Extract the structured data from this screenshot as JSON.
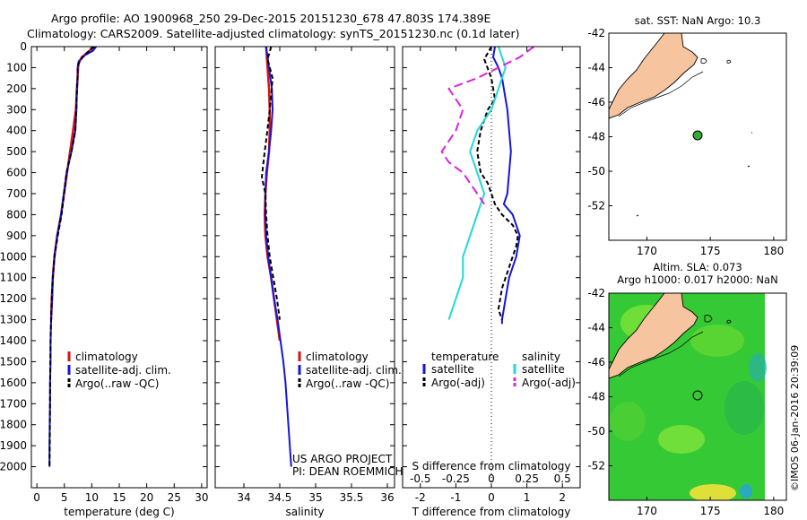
{
  "header": {
    "line1": "Argo profile: AO 1900968_250 29-Dec-2015 20151230_678 47.803S 174.389E",
    "line2": "Climatology: CARS2009. Satellite-adjusted climatology: synTS_20151230.nc (0.1d later)"
  },
  "credit": "©IMOS 06-Jan-2016 20:39:09",
  "colors": {
    "climatology": "#dd1111",
    "satellite": "#1515dd",
    "argo": "#000000",
    "salinity_sat": "#22d8d8",
    "salinity_argo": "#dd22dd",
    "land": "#f6c49e",
    "float_marker": "#33aa33"
  },
  "chart_data": [
    {
      "id": "temperature",
      "type": "line",
      "xlabel": "temperature (deg C)",
      "ylabel": "",
      "xlim": [
        -1,
        31
      ],
      "ylim": [
        2100,
        0
      ],
      "y_reversed": true,
      "xticks": [
        "0",
        "5",
        "10",
        "15",
        "20",
        "25",
        "30"
      ],
      "xtick_values": [
        0,
        5,
        10,
        15,
        20,
        25,
        30
      ],
      "yticks": [
        "0",
        "100",
        "200",
        "300",
        "400",
        "500",
        "600",
        "700",
        "800",
        "900",
        "1000",
        "1100",
        "1200",
        "1300",
        "1400",
        "1500",
        "1600",
        "1700",
        "1800",
        "1900",
        "2000"
      ],
      "legend": [
        "climatology",
        "satellite-adj. clim.",
        "Argo(..raw -QC)"
      ],
      "legend_position": "lower-middle",
      "series": [
        {
          "name": "climatology",
          "color": "#dd1111",
          "width": 2.5,
          "x": [
            10.1,
            9.6,
            8.2,
            7.6,
            7.5,
            7.4,
            7.3,
            7.1,
            6.6,
            5.5,
            4.4,
            3.7,
            3.2,
            2.9,
            2.7,
            2.6
          ],
          "y": [
            0,
            20,
            50,
            80,
            100,
            150,
            200,
            300,
            400,
            600,
            800,
            900,
            1000,
            1100,
            1200,
            1300
          ]
        },
        {
          "name": "satellite-adj. clim.",
          "color": "#1515dd",
          "width": 2,
          "x": [
            10.8,
            10.2,
            8.8,
            7.6,
            7.4,
            7.4,
            7.3,
            7.2,
            7.0,
            6.3,
            5.4,
            4.4,
            3.7,
            3.2,
            2.9,
            2.8,
            2.6,
            2.5,
            2.5,
            2.4,
            2.4,
            2.35,
            2.3,
            2.3
          ],
          "y": [
            0,
            20,
            40,
            70,
            100,
            150,
            200,
            300,
            400,
            500,
            600,
            800,
            900,
            1000,
            1100,
            1200,
            1300,
            1400,
            1500,
            1600,
            1700,
            1800,
            1900,
            2000
          ]
        },
        {
          "name": "Argo(..raw -QC)",
          "color": "#000000",
          "width": 2,
          "dash": "5,3",
          "x": [
            10.5,
            9.5,
            8.3,
            7.6,
            7.4,
            7.4,
            7.3,
            7.2,
            7.0,
            6.3,
            5.4,
            4.5,
            3.8,
            3.2,
            2.9,
            2.7,
            2.6,
            2.5,
            2.45,
            2.4,
            2.35,
            2.3
          ],
          "y": [
            0,
            20,
            50,
            80,
            100,
            150,
            200,
            300,
            400,
            500,
            600,
            800,
            900,
            1000,
            1100,
            1200,
            1300,
            1400,
            1500,
            1700,
            1900,
            2000
          ]
        }
      ]
    },
    {
      "id": "salinity",
      "type": "line",
      "xlabel": "salinity",
      "ylabel": "",
      "xlim": [
        33.6,
        36.1
      ],
      "ylim": [
        2100,
        0
      ],
      "y_reversed": true,
      "xticks": [
        "34",
        "34.5",
        "35",
        "35.5",
        "36"
      ],
      "xtick_values": [
        34,
        34.5,
        35,
        35.5,
        36
      ],
      "legend": [
        "climatology",
        "satellite-adj. clim.",
        "Argo(..raw -QC)"
      ],
      "legend_position": "lower-middle",
      "annotations": [
        "US ARGO PROJECT",
        "PI: DEAN ROEMMICH"
      ],
      "series": [
        {
          "name": "climatology",
          "color": "#dd1111",
          "width": 2.5,
          "x": [
            34.31,
            34.33,
            34.35,
            34.36,
            34.36,
            34.35,
            34.32,
            34.3,
            34.29,
            34.3,
            34.33,
            34.38,
            34.42,
            34.46,
            34.5
          ],
          "y": [
            0,
            100,
            200,
            300,
            400,
            500,
            600,
            700,
            800,
            900,
            1000,
            1100,
            1200,
            1300,
            1400
          ]
        },
        {
          "name": "satellite-adj. clim.",
          "color": "#1515dd",
          "width": 2,
          "x": [
            34.31,
            34.35,
            34.39,
            34.4,
            34.38,
            34.35,
            34.31,
            34.3,
            34.3,
            34.31,
            34.34,
            34.38,
            34.42,
            34.47,
            34.51,
            34.55,
            34.58,
            34.6,
            34.62,
            34.64,
            34.66
          ],
          "y": [
            0,
            100,
            200,
            300,
            400,
            500,
            600,
            700,
            800,
            900,
            1000,
            1100,
            1200,
            1300,
            1400,
            1500,
            1600,
            1700,
            1800,
            1900,
            2000
          ]
        },
        {
          "name": "Argo(..raw -QC)",
          "color": "#000000",
          "width": 2,
          "dash": "5,3",
          "x": [
            34.38,
            34.33,
            34.4,
            34.36,
            34.32,
            34.29,
            34.25,
            34.3,
            34.31,
            34.33,
            34.36,
            34.41,
            34.46,
            34.5
          ],
          "y": [
            0,
            60,
            150,
            300,
            420,
            500,
            620,
            700,
            800,
            900,
            1000,
            1100,
            1200,
            1300
          ]
        }
      ]
    },
    {
      "id": "difference",
      "type": "line",
      "xlabel": "T difference from climatology",
      "xlabel_top": "S difference from climatology",
      "xlim": [
        -2.5,
        2.5
      ],
      "ylim": [
        2100,
        0
      ],
      "y_reversed": true,
      "xticks": [
        "-2",
        "-1",
        "0",
        "1",
        "2"
      ],
      "xtick_values": [
        -2,
        -1,
        0,
        1,
        2
      ],
      "s_ticks": [
        "-0.5",
        "-0.25",
        "0",
        "0.25",
        "0.5"
      ],
      "s_tick_values": [
        -0.5,
        -0.25,
        0,
        0.25,
        0.5
      ],
      "legend_headers": [
        "temperature",
        "salinity"
      ],
      "legend": [
        "satellite",
        "Argo(-adj)",
        "satellite",
        "Argo(-adj)"
      ],
      "legend_position": "lower-middle",
      "series": [
        {
          "name": "satellite",
          "group": "temperature",
          "color": "#1515dd",
          "width": 2,
          "x": [
            0.1,
            0.05,
            0.2,
            0.3,
            0.35,
            0.45,
            0.5,
            0.55,
            0.5,
            0.45,
            0.35,
            0.6,
            0.8,
            0.7,
            0.5,
            0.4,
            0.35,
            0.3,
            0.3
          ],
          "y": [
            0,
            50,
            100,
            150,
            200,
            300,
            400,
            500,
            600,
            700,
            750,
            800,
            900,
            1000,
            1100,
            1200,
            1250,
            1300,
            1320
          ]
        },
        {
          "name": "Argo(-adj)",
          "group": "temperature",
          "color": "#000000",
          "width": 2,
          "dash": "5,3",
          "x": [
            0.0,
            -0.2,
            0.0,
            0.1,
            -0.1,
            -0.3,
            -0.4,
            -0.3,
            -0.1,
            0.0,
            0.1,
            0.3,
            0.6,
            0.75,
            0.7,
            0.5,
            0.3,
            0.2,
            0.3
          ],
          "y": [
            0,
            60,
            150,
            250,
            300,
            400,
            500,
            600,
            650,
            700,
            750,
            800,
            850,
            900,
            950,
            1050,
            1150,
            1250,
            1300
          ]
        },
        {
          "name": "satellite",
          "group": "salinity",
          "color": "#22d8d8",
          "width": 2,
          "x": [
            0.05,
            0.1,
            0.05,
            0.0,
            -0.1,
            -0.15,
            -0.1,
            -0.05,
            -0.1,
            -0.15,
            -0.2,
            -0.2,
            -0.25,
            -0.3
          ],
          "y": [
            0,
            100,
            200,
            300,
            400,
            500,
            600,
            700,
            800,
            900,
            1000,
            1100,
            1200,
            1300
          ]
        },
        {
          "name": "Argo(-adj)",
          "group": "salinity",
          "color": "#dd22dd",
          "width": 2,
          "dash": "10,5",
          "x": [
            0.3,
            0.2,
            0.05,
            -0.1,
            -0.3,
            -0.2,
            -0.25,
            -0.35,
            -0.3,
            -0.2,
            -0.15,
            -0.1,
            -0.05
          ],
          "y": [
            0,
            50,
            100,
            150,
            200,
            300,
            400,
            500,
            550,
            600,
            650,
            700,
            750
          ]
        }
      ]
    }
  ],
  "maps": [
    {
      "id": "sst-map",
      "title": "sat. SST: NaN Argo: 10.3",
      "background": "#ffffff",
      "lon_range": [
        167,
        181
      ],
      "lat_range": [
        -54,
        -42
      ],
      "xticks": [
        "170",
        "175",
        "180"
      ],
      "xtick_values": [
        170,
        175,
        180
      ],
      "yticks": [
        "-42",
        "-44",
        "-46",
        "-48",
        "-50",
        "-52"
      ],
      "ytick_values": [
        -42,
        -44,
        -46,
        -48,
        -50,
        -52
      ],
      "float_position": [
        174.389,
        -47.803
      ]
    },
    {
      "id": "sla-map",
      "title_line1": "Altim. SLA: 0.073",
      "title_line2": "Argo h1000: 0.017 h2000: NaN",
      "background": "#33cc33",
      "lon_range": [
        167,
        181
      ],
      "lat_range": [
        -54,
        -42
      ],
      "xticks": [
        "170",
        "175",
        "180"
      ],
      "xtick_values": [
        170,
        175,
        180
      ],
      "yticks": [
        "-42",
        "-44",
        "-46",
        "-48",
        "-50",
        "-52"
      ],
      "ytick_values": [
        -42,
        -44,
        -46,
        -48,
        -50,
        -52
      ],
      "float_position": [
        174.389,
        -47.803
      ]
    }
  ]
}
